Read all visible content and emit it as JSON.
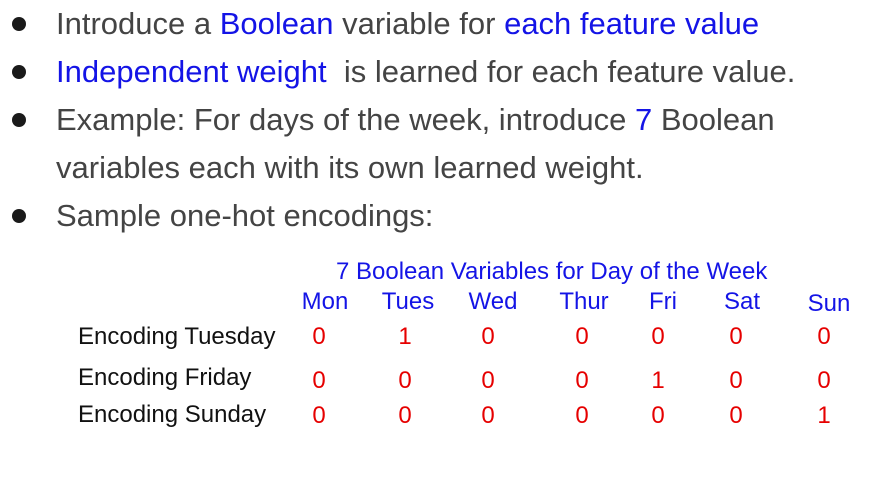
{
  "bullets": [
    {
      "parts": [
        {
          "text": "Introduce a ",
          "highlight": false
        },
        {
          "text": "Boolean",
          "highlight": true
        },
        {
          "text": " variable for ",
          "highlight": false
        },
        {
          "text": "each feature value",
          "highlight": true
        }
      ]
    },
    {
      "parts": [
        {
          "text": "Independent weight",
          "highlight": true
        },
        {
          "text": "  is learned for each feature value.",
          "highlight": false
        }
      ]
    },
    {
      "line1": [
        {
          "text": "Example: For days of the week, introduce ",
          "highlight": false
        },
        {
          "text": "7",
          "highlight": true
        },
        {
          "text": " Boolean",
          "highlight": false
        }
      ],
      "line2": "variables each with its own learned weight."
    },
    {
      "text": "Sample one-hot encodings:"
    }
  ],
  "encoding": {
    "title": "7 Boolean Variables for Day of the Week",
    "days": [
      "Mon",
      "Tues",
      "Wed",
      "Thur",
      "Fri",
      "Sat",
      "Sun"
    ],
    "rows": [
      {
        "label": "Encoding Tuesday",
        "values": [
          "0",
          "1",
          "0",
          "0",
          "0",
          "0",
          "0"
        ]
      },
      {
        "label": "Encoding Friday",
        "values": [
          "0",
          "0",
          "0",
          "0",
          "1",
          "0",
          "0"
        ]
      },
      {
        "label": "Encoding Sunday",
        "values": [
          "0",
          "0",
          "0",
          "0",
          "0",
          "0",
          "1"
        ]
      }
    ]
  },
  "colors": {
    "text": "#444444",
    "highlight": "#1414e6",
    "value": "#e60000",
    "label": "#111111"
  }
}
